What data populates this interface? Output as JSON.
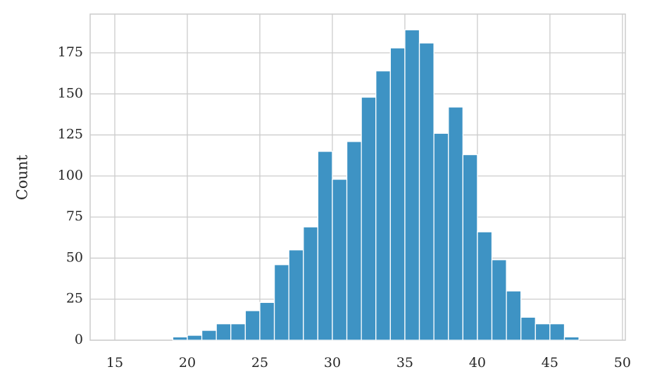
{
  "chart_data": {
    "type": "histogram",
    "y_label": "Count",
    "bins": [
      15,
      16,
      17,
      18,
      19,
      20,
      21,
      22,
      23,
      24,
      25,
      26,
      27,
      28,
      29,
      30,
      31,
      32,
      33,
      34,
      35,
      36,
      37,
      38,
      39,
      40,
      41,
      42,
      43,
      44,
      45,
      46,
      47,
      48
    ],
    "values": [
      0,
      0,
      0,
      0,
      2,
      3,
      6,
      10,
      10,
      18,
      23,
      46,
      55,
      69,
      115,
      98,
      121,
      148,
      164,
      178,
      189,
      181,
      126,
      142,
      113,
      66,
      49,
      30,
      14,
      10,
      10,
      2,
      0
    ],
    "color": "#3e93c4",
    "xlim": [
      13.3,
      50.2
    ],
    "xticks": [
      15,
      20,
      25,
      30,
      35,
      40,
      45,
      50
    ],
    "ylim": [
      0,
      198.6
    ],
    "yticks": [
      0,
      25,
      50,
      75,
      100,
      125,
      150,
      175
    ],
    "grid": true
  }
}
